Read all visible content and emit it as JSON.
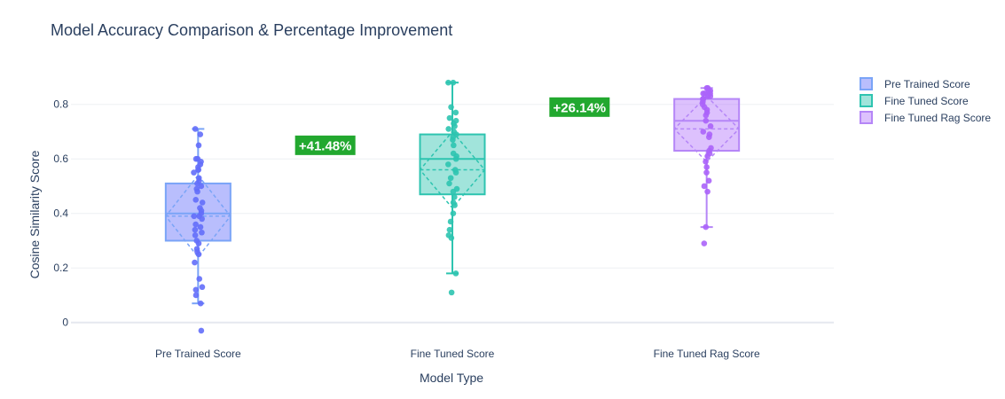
{
  "chart_data": {
    "type": "box",
    "title": "Model Accuracy Comparison & Percentage Improvement",
    "xlabel": "Model Type",
    "ylabel": "Cosine Similarity Score",
    "ylim": [
      -0.04,
      0.9
    ],
    "yticks": [
      0,
      0.2,
      0.4,
      0.6,
      0.8
    ],
    "ytick_labels": [
      "0",
      "0.2",
      "0.4",
      "0.6",
      "0.8"
    ],
    "grid": true,
    "legend_position": "top-right",
    "categories": [
      "Pre Trained Score",
      "Fine Tuned Score",
      "Fine Tuned Rag Score"
    ],
    "series": [
      {
        "name": "Pre Trained Score",
        "color": "#636efa",
        "fill": "rgba(99,110,250,0.45)",
        "line": "#7aa4f7",
        "stats": {
          "min": 0.07,
          "q1": 0.3,
          "median": 0.4,
          "q3": 0.51,
          "max": 0.71,
          "mean": 0.39,
          "sd": 0.15
        },
        "points": [
          0.71,
          0.69,
          0.65,
          0.6,
          0.6,
          0.59,
          0.58,
          0.57,
          0.56,
          0.56,
          0.55,
          0.53,
          0.52,
          0.51,
          0.5,
          0.49,
          0.48,
          0.45,
          0.44,
          0.42,
          0.41,
          0.4,
          0.39,
          0.39,
          0.38,
          0.36,
          0.35,
          0.34,
          0.33,
          0.32,
          0.3,
          0.29,
          0.27,
          0.26,
          0.25,
          0.22,
          0.16,
          0.13,
          0.12,
          0.1,
          0.07,
          -0.03
        ]
      },
      {
        "name": "Fine Tuned Score",
        "color": "#2ec4b0",
        "fill": "rgba(46,196,176,0.45)",
        "line": "#2ec4b0",
        "stats": {
          "min": 0.18,
          "q1": 0.47,
          "median": 0.6,
          "q3": 0.69,
          "max": 0.88,
          "mean": 0.56,
          "sd": 0.14
        },
        "points": [
          0.88,
          0.88,
          0.79,
          0.77,
          0.75,
          0.74,
          0.73,
          0.72,
          0.71,
          0.7,
          0.69,
          0.68,
          0.67,
          0.65,
          0.62,
          0.61,
          0.6,
          0.58,
          0.56,
          0.55,
          0.53,
          0.51,
          0.49,
          0.48,
          0.46,
          0.44,
          0.43,
          0.4,
          0.37,
          0.34,
          0.32,
          0.31,
          0.18,
          0.11
        ]
      },
      {
        "name": "Fine Tuned Rag Score",
        "color": "#ab63fa",
        "fill": "rgba(171,99,250,0.40)",
        "line": "#b586f7",
        "stats": {
          "min": 0.35,
          "q1": 0.63,
          "median": 0.74,
          "q3": 0.82,
          "max": 0.86,
          "mean": 0.71,
          "sd": 0.12
        },
        "points": [
          0.86,
          0.86,
          0.85,
          0.85,
          0.84,
          0.84,
          0.84,
          0.83,
          0.83,
          0.82,
          0.82,
          0.81,
          0.8,
          0.79,
          0.78,
          0.77,
          0.76,
          0.74,
          0.72,
          0.7,
          0.69,
          0.68,
          0.64,
          0.63,
          0.62,
          0.61,
          0.59,
          0.57,
          0.55,
          0.52,
          0.5,
          0.48,
          0.35,
          0.29
        ]
      }
    ],
    "annotations": [
      {
        "text": "+41.48%",
        "x_between": [
          0,
          1
        ],
        "y": 0.65,
        "bgcolor": "#22a82f"
      },
      {
        "text": "+26.14%",
        "x_between": [
          1,
          2
        ],
        "y": 0.79,
        "bgcolor": "#22a82f"
      }
    ]
  }
}
